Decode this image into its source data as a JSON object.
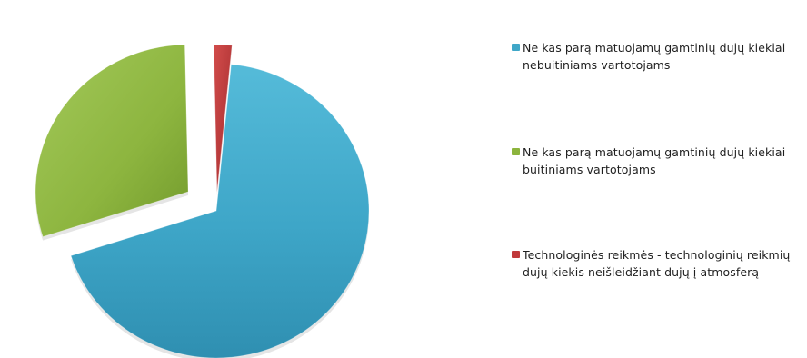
{
  "chart_data": {
    "type": "pie",
    "exploded": true,
    "three_d": true,
    "legend_position": "right",
    "slices": [
      {
        "label": "Ne kas parą matuojamų gamtinių dujų kiekiai nebuitiniams vartotojams",
        "value": 68.5,
        "color": "#3fa7c8"
      },
      {
        "label": "Ne kas parą matuojamų gamtinių dujų kiekiai buitiniams vartotojams",
        "value": 29.6,
        "color": "#8cb43d"
      },
      {
        "label": "Technologinės reikmės - technologinių reikmių dujų kiekis neišleidžiant dujų į atmosferą",
        "value": 1.9,
        "color": "#c0393b"
      }
    ]
  }
}
